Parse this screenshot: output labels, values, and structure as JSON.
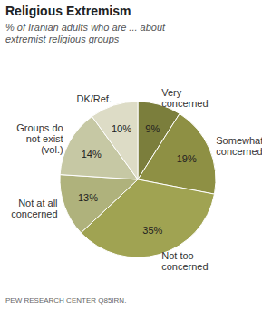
{
  "chart_data": {
    "type": "pie",
    "title": "Religious Extremism",
    "subtitle": "% of Iranian adults who are ... about extremist religious groups",
    "source": "PEW RESEARCH CENTER Q85IRN.",
    "categories": [
      "Very concerned",
      "Somewhat concerned",
      "Not too concerned",
      "Not at all concerned",
      "Groups do not exist (vol.)",
      "DK/Ref."
    ],
    "values": [
      9,
      19,
      35,
      13,
      14,
      10
    ],
    "value_labels": [
      "9%",
      "19%",
      "35%",
      "13%",
      "14%",
      "10%"
    ],
    "colors": [
      "#7b7e3c",
      "#8e9044",
      "#a0a352",
      "#afb27c",
      "#c6c8a4",
      "#dddcc6"
    ],
    "data_labels": true
  }
}
